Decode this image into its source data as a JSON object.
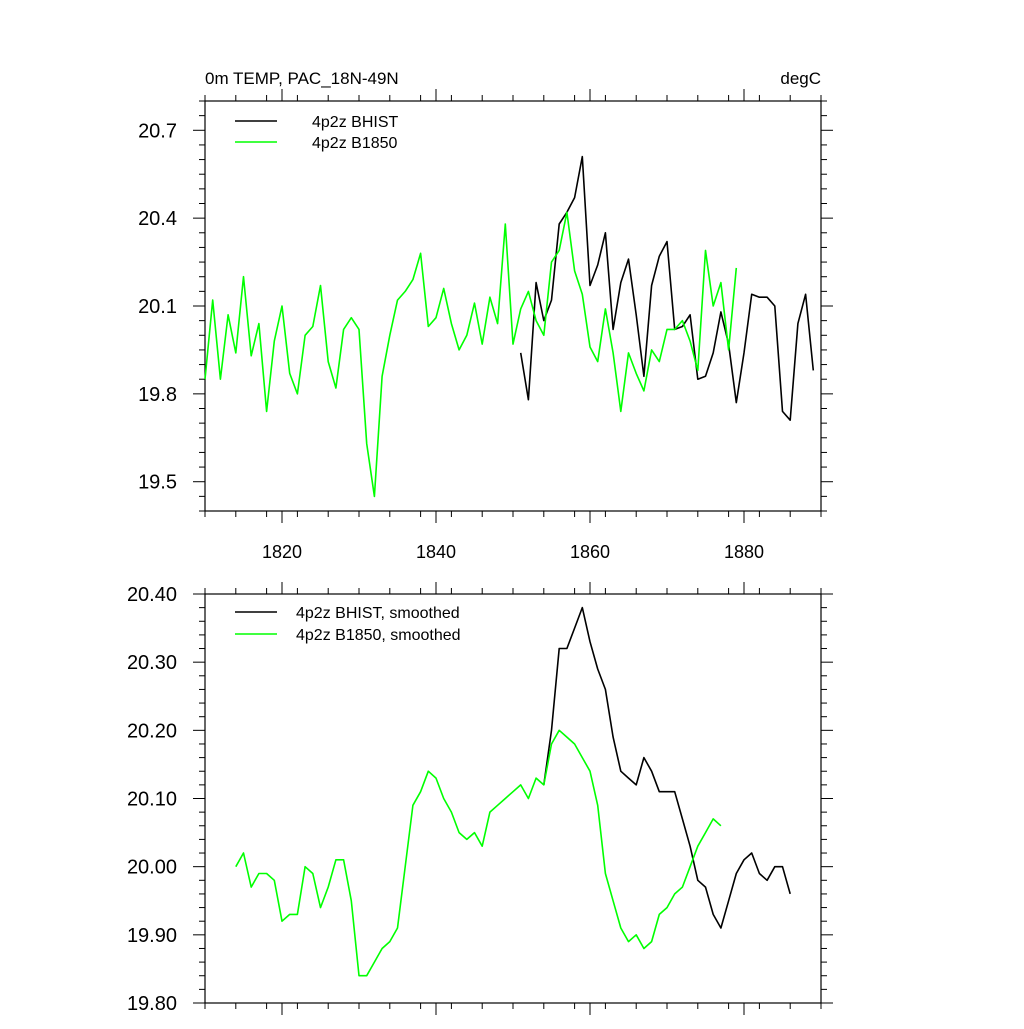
{
  "chart_data": [
    {
      "type": "line",
      "title_left": "0m TEMP, PAC_18N-49N",
      "title_right": "degC",
      "xlabel": "",
      "ylabel": "",
      "xlim": [
        1810,
        1890
      ],
      "ylim": [
        19.4,
        20.8
      ],
      "x_ticks": [
        1820,
        1840,
        1860,
        1880
      ],
      "x_tick_labels": [
        "1820",
        "1840",
        "1860",
        "1880"
      ],
      "y_ticks": [
        19.5,
        19.8,
        20.1,
        20.4,
        20.7
      ],
      "y_tick_labels": [
        "19.5",
        "19.8",
        "20.1",
        "20.4",
        "20.7"
      ],
      "legend_position": "top-left",
      "series": [
        {
          "name": "4p2z BHIST",
          "color": "#000000",
          "x": [
            1851,
            1852,
            1853,
            1854,
            1855,
            1856,
            1857,
            1858,
            1859,
            1860,
            1861,
            1862,
            1863,
            1864,
            1865,
            1866,
            1867,
            1868,
            1869,
            1870,
            1871,
            1872,
            1873,
            1874,
            1875,
            1876,
            1877,
            1878,
            1879,
            1880,
            1881,
            1882,
            1883,
            1884,
            1885,
            1886,
            1887,
            1888,
            1889
          ],
          "values": [
            19.94,
            19.78,
            20.18,
            20.05,
            20.12,
            20.38,
            20.42,
            20.47,
            20.61,
            20.17,
            20.24,
            20.35,
            20.02,
            20.18,
            20.26,
            20.07,
            19.86,
            20.17,
            20.27,
            20.32,
            20.02,
            20.03,
            20.07,
            19.85,
            19.86,
            19.94,
            20.08,
            19.97,
            19.77,
            19.94,
            20.14,
            20.13,
            20.13,
            20.1,
            19.74,
            19.71,
            20.04,
            20.14,
            19.88
          ]
        },
        {
          "name": "4p2z B1850",
          "color": "#00ff00",
          "x": [
            1810,
            1811,
            1812,
            1813,
            1814,
            1815,
            1816,
            1817,
            1818,
            1819,
            1820,
            1821,
            1822,
            1823,
            1824,
            1825,
            1826,
            1827,
            1828,
            1829,
            1830,
            1831,
            1832,
            1833,
            1834,
            1835,
            1836,
            1837,
            1838,
            1839,
            1840,
            1841,
            1842,
            1843,
            1844,
            1845,
            1846,
            1847,
            1848,
            1849,
            1850,
            1851,
            1852,
            1853,
            1854,
            1855,
            1856,
            1857,
            1858,
            1859,
            1860,
            1861,
            1862,
            1863,
            1864,
            1865,
            1866,
            1867,
            1868,
            1869,
            1870,
            1871,
            1872,
            1873,
            1874,
            1875,
            1876,
            1877,
            1878,
            1879
          ],
          "values": [
            19.85,
            20.12,
            19.85,
            20.07,
            19.94,
            20.2,
            19.93,
            20.04,
            19.74,
            19.98,
            20.1,
            19.87,
            19.8,
            20.0,
            20.03,
            20.17,
            19.91,
            19.82,
            20.02,
            20.06,
            20.02,
            19.63,
            19.45,
            19.86,
            20.0,
            20.12,
            20.15,
            20.19,
            20.28,
            20.03,
            20.06,
            20.16,
            20.04,
            19.95,
            20.0,
            20.11,
            19.97,
            20.13,
            20.04,
            20.38,
            19.97,
            20.09,
            20.15,
            20.05,
            20.0,
            20.25,
            20.29,
            20.42,
            20.22,
            20.14,
            19.96,
            19.91,
            20.09,
            19.94,
            19.74,
            19.94,
            19.87,
            19.81,
            19.95,
            19.91,
            20.02,
            20.02,
            20.05,
            19.98,
            19.88,
            20.29,
            20.1,
            20.18,
            19.95,
            20.23
          ]
        }
      ]
    },
    {
      "type": "line",
      "title_left": "",
      "title_right": "",
      "xlabel": "",
      "ylabel": "",
      "xlim": [
        1810,
        1890
      ],
      "ylim": [
        19.8,
        20.4
      ],
      "x_ticks": [
        1820,
        1840,
        1860,
        1880
      ],
      "y_ticks": [
        19.8,
        19.9,
        20.0,
        20.1,
        20.2,
        20.3,
        20.4
      ],
      "y_tick_labels": [
        "19.80",
        "19.90",
        "20.00",
        "20.10",
        "20.20",
        "20.30",
        "20.40"
      ],
      "legend_position": "top-left",
      "series": [
        {
          "name": "4p2z BHIST, smoothed",
          "color": "#000000",
          "x": [
            1854,
            1855,
            1856,
            1857,
            1858,
            1859,
            1860,
            1861,
            1862,
            1863,
            1864,
            1865,
            1866,
            1867,
            1868,
            1869,
            1870,
            1871,
            1872,
            1873,
            1874,
            1875,
            1876,
            1877,
            1878,
            1879,
            1880,
            1881,
            1882,
            1883,
            1884,
            1885,
            1886
          ],
          "values": [
            20.12,
            20.2,
            20.32,
            20.32,
            20.35,
            20.38,
            20.33,
            20.29,
            20.26,
            20.19,
            20.14,
            20.13,
            20.12,
            20.16,
            20.14,
            20.11,
            20.11,
            20.11,
            20.07,
            20.03,
            19.98,
            19.97,
            19.93,
            19.91,
            19.95,
            19.99,
            20.01,
            20.02,
            19.99,
            19.98,
            20.0,
            20.0,
            19.96
          ]
        },
        {
          "name": "4p2z B1850, smoothed",
          "color": "#00ff00",
          "x": [
            1814,
            1815,
            1816,
            1817,
            1818,
            1819,
            1820,
            1821,
            1822,
            1823,
            1824,
            1825,
            1826,
            1827,
            1828,
            1829,
            1830,
            1831,
            1832,
            1833,
            1834,
            1835,
            1836,
            1837,
            1838,
            1839,
            1840,
            1841,
            1842,
            1843,
            1844,
            1845,
            1846,
            1847,
            1848,
            1849,
            1850,
            1851,
            1852,
            1853,
            1854,
            1855,
            1856,
            1857,
            1858,
            1859,
            1860,
            1861,
            1862,
            1863,
            1864,
            1865,
            1866,
            1867,
            1868,
            1869,
            1870,
            1871,
            1872,
            1873,
            1874,
            1875,
            1876,
            1877
          ],
          "values": [
            20.0,
            20.02,
            19.97,
            19.99,
            19.99,
            19.98,
            19.92,
            19.93,
            19.93,
            20.0,
            19.99,
            19.94,
            19.97,
            20.01,
            20.01,
            19.95,
            19.84,
            19.84,
            19.86,
            19.88,
            19.89,
            19.91,
            20.0,
            20.09,
            20.11,
            20.14,
            20.13,
            20.1,
            20.08,
            20.05,
            20.04,
            20.05,
            20.03,
            20.08,
            20.09,
            20.1,
            20.11,
            20.12,
            20.1,
            20.13,
            20.12,
            20.18,
            20.2,
            20.19,
            20.18,
            20.16,
            20.14,
            20.09,
            19.99,
            19.95,
            19.91,
            19.89,
            19.9,
            19.88,
            19.89,
            19.93,
            19.94,
            19.96,
            19.97,
            20.0,
            20.03,
            20.05,
            20.07,
            20.06
          ]
        }
      ]
    }
  ]
}
